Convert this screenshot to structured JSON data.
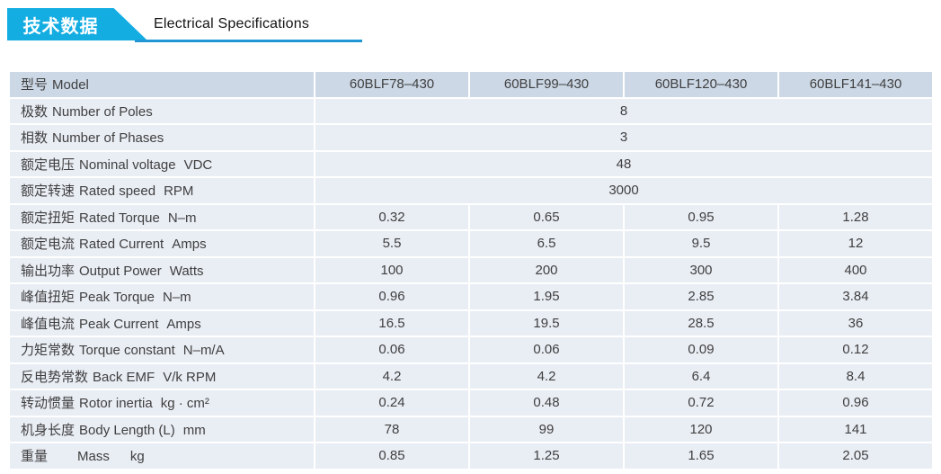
{
  "header": {
    "banner_title": "技术数据",
    "subtitle": "Electrical Specifications"
  },
  "colors": {
    "banner_blue": "#13ade2",
    "underline_blue": "#2097d4",
    "header_row_bg": "#ccd8e6",
    "body_row_bg": "#e9edf4",
    "text": "#404040"
  },
  "table": {
    "header": {
      "label_cn": "型号",
      "label_en": "Model",
      "models": [
        "60BLF78–430",
        "60BLF99–430",
        "60BLF120–430",
        "60BLF141–430"
      ]
    },
    "rows": [
      {
        "label_cn": "极数",
        "label_en": "Number of Poles",
        "unit": "",
        "merged": "8"
      },
      {
        "label_cn": "相数",
        "label_en": "Number of Phases",
        "unit": "",
        "merged": "3"
      },
      {
        "label_cn": "额定电压",
        "label_en": "Nominal voltage",
        "unit": "VDC",
        "merged": "48"
      },
      {
        "label_cn": "额定转速",
        "label_en": "Rated speed",
        "unit": "RPM",
        "merged": "3000"
      },
      {
        "label_cn": "额定扭矩",
        "label_en": "Rated Torque",
        "unit": "N–m",
        "values": [
          "0.32",
          "0.65",
          "0.95",
          "1.28"
        ]
      },
      {
        "label_cn": "额定电流",
        "label_en": "Rated Current",
        "unit": "Amps",
        "values": [
          "5.5",
          "6.5",
          "9.5",
          "12"
        ]
      },
      {
        "label_cn": "输出功率",
        "label_en": "Output Power",
        "unit": "Watts",
        "values": [
          "100",
          "200",
          "300",
          "400"
        ]
      },
      {
        "label_cn": "峰值扭矩",
        "label_en": "Peak Torque",
        "unit": "N–m",
        "values": [
          "0.96",
          "1.95",
          "2.85",
          "3.84"
        ]
      },
      {
        "label_cn": "峰值电流",
        "label_en": "Peak Current",
        "unit": "Amps",
        "values": [
          "16.5",
          "19.5",
          "28.5",
          "36"
        ]
      },
      {
        "label_cn": "力矩常数",
        "label_en": "Torque constant",
        "unit": "N–m/A",
        "values": [
          "0.06",
          "0.06",
          "0.09",
          "0.12"
        ]
      },
      {
        "label_cn": "反电势常数",
        "label_en": "Back EMF",
        "unit": "V/k RPM",
        "values": [
          "4.2",
          "4.2",
          "6.4",
          "8.4"
        ]
      },
      {
        "label_cn": "转动惯量",
        "label_en": "Rotor inertia",
        "unit": "kg · cm²",
        "values": [
          "0.24",
          "0.48",
          "0.72",
          "0.96"
        ]
      },
      {
        "label_cn": "机身长度",
        "label_en": "Body Length (L)",
        "unit": "mm",
        "values": [
          "78",
          "99",
          "120",
          "141"
        ]
      },
      {
        "label_cn": "重量",
        "label_en": "Mass",
        "unit": "kg",
        "spread": true,
        "values": [
          "0.85",
          "1.25",
          "1.65",
          "2.05"
        ]
      }
    ]
  }
}
